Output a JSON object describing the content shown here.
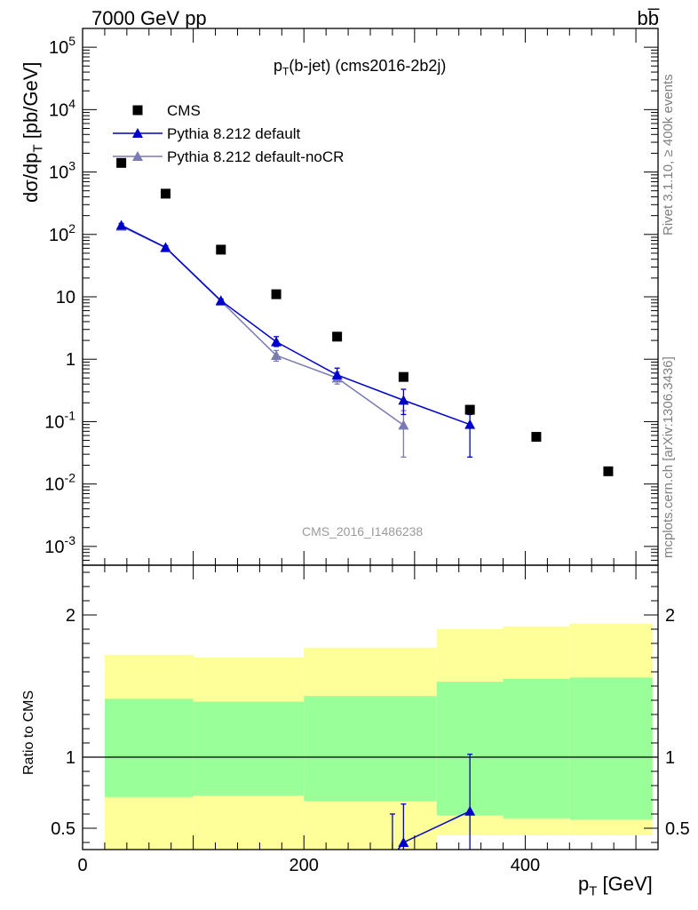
{
  "header": {
    "left": "7000 GeV pp",
    "right": "bb̅"
  },
  "side_labels": {
    "rivet": "Rivet 3.1.10, ≥ 400k events",
    "mcplots": "mcplots.cern.ch [arXiv:1306.3436]"
  },
  "watermark": "CMS_2016_I1486238",
  "chart_data": [
    {
      "type": "scatter",
      "title_main": "p",
      "title_sub": "T",
      "title_rest": "(b-jet) (cms2016-2b2j)",
      "ylabel": "dσ/dp_T [pb/GeV]",
      "y_scale": "log",
      "ylim": [
        0.0005,
        200000
      ],
      "xlim": [
        0,
        520
      ],
      "legend_position": "top-left",
      "y_tick_labels": [
        "10^-3",
        "10^-2",
        "10^-1",
        "1",
        "10",
        "10^2",
        "10^3",
        "10^4",
        "10^5"
      ],
      "series": [
        {
          "name": "CMS",
          "marker": "square",
          "color": "#000000",
          "x": [
            35,
            75,
            125,
            175,
            230,
            290,
            350,
            410,
            475
          ],
          "y": [
            1400,
            450,
            57,
            11,
            2.3,
            0.52,
            0.155,
            0.057,
            0.016
          ]
        },
        {
          "name": "Pythia 8.212 default",
          "marker": "triangle",
          "color": "#0000cc",
          "x": [
            35,
            75,
            125,
            175,
            230,
            290,
            350
          ],
          "y": [
            140,
            62,
            8.7,
            1.9,
            0.56,
            0.22,
            0.09
          ],
          "y_err_low": [
            130,
            58,
            8.2,
            1.6,
            0.44,
            0.13,
            0.027
          ],
          "y_err_high": [
            150,
            66,
            9.2,
            2.3,
            0.72,
            0.33,
            0.13
          ]
        },
        {
          "name": "Pythia 8.212 default-noCR",
          "marker": "triangle",
          "color": "#7a7ab4",
          "x": [
            35,
            75,
            125,
            175,
            230,
            290
          ],
          "y": [
            135,
            61,
            8.5,
            1.15,
            0.5,
            0.088
          ],
          "y_err_low": [
            125,
            57,
            8.0,
            0.93,
            0.4,
            0.027
          ],
          "y_err_high": [
            145,
            65,
            9.0,
            1.38,
            0.62,
            0.15
          ]
        }
      ]
    },
    {
      "type": "area",
      "ylabel": "Ratio to CMS",
      "xlabel_main": "p",
      "xlabel_sub": "T",
      "xlabel_rest": " [GeV]",
      "ylim": [
        0.35,
        2.35
      ],
      "xlim": [
        0,
        520
      ],
      "x_ticks": [
        0,
        200,
        400
      ],
      "y_ticks": [
        0.5,
        1,
        2
      ],
      "reference_line": 1,
      "bins": [
        {
          "x0": 20,
          "x1": 100,
          "yellow_low": 0.28,
          "yellow_high": 1.72,
          "green_low": 0.72,
          "green_high": 1.41
        },
        {
          "x0": 100,
          "x1": 200,
          "yellow_low": 0.27,
          "yellow_high": 1.7,
          "green_low": 0.73,
          "green_high": 1.39
        },
        {
          "x0": 200,
          "x1": 320,
          "yellow_low": 0.3,
          "yellow_high": 1.77,
          "green_low": 0.69,
          "green_high": 1.43
        },
        {
          "x0": 320,
          "x1": 380,
          "yellow_low": 0.45,
          "yellow_high": 1.9,
          "green_low": 0.59,
          "green_high": 1.53
        },
        {
          "x0": 380,
          "x1": 440,
          "yellow_low": 0.45,
          "yellow_high": 1.92,
          "green_low": 0.57,
          "green_high": 1.55
        },
        {
          "x0": 440,
          "x1": 515,
          "yellow_low": 0.45,
          "yellow_high": 1.94,
          "green_low": 0.56,
          "green_high": 1.56
        }
      ],
      "series": [
        {
          "name": "Pythia 8.212 default",
          "color": "#0000cc",
          "x": [
            280,
            290,
            350
          ],
          "y": [
            0.3,
            0.4,
            0.62
          ],
          "y_err_low": [
            0.2,
            0.2,
            0.2
          ],
          "y_err_high": [
            0.6,
            0.67,
            1.02
          ]
        }
      ]
    }
  ]
}
